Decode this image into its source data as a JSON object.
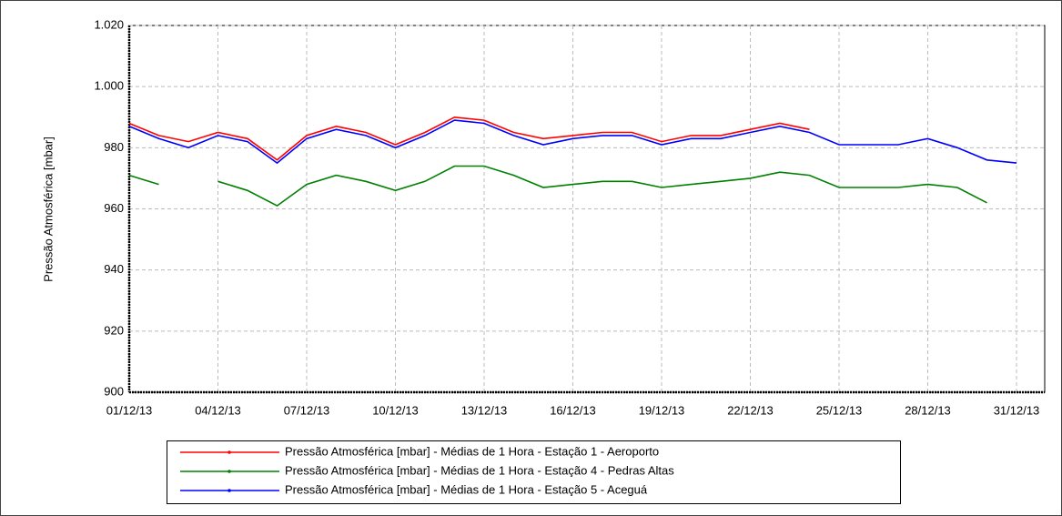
{
  "chart_data": {
    "type": "line",
    "ylabel": "Pressão Atmosférica [mbar]",
    "x": [
      "01/12/13",
      "02/12/13",
      "03/12/13",
      "04/12/13",
      "05/12/13",
      "06/12/13",
      "07/12/13",
      "08/12/13",
      "09/12/13",
      "10/12/13",
      "11/12/13",
      "12/12/13",
      "13/12/13",
      "14/12/13",
      "15/12/13",
      "16/12/13",
      "17/12/13",
      "18/12/13",
      "19/12/13",
      "20/12/13",
      "21/12/13",
      "22/12/13",
      "23/12/13",
      "24/12/13",
      "25/12/13",
      "26/12/13",
      "27/12/13",
      "28/12/13",
      "29/12/13",
      "30/12/13",
      "31/12/13"
    ],
    "series": [
      {
        "name": "Pressão Atmosférica [mbar] - Médias de 1 Hora - Estação 1 - Aeroporto",
        "color": "#ff0000",
        "values": [
          988,
          984,
          982,
          985,
          983,
          976,
          984,
          987,
          985,
          981,
          985,
          990,
          989,
          985,
          983,
          984,
          985,
          985,
          982,
          984,
          984,
          986,
          988,
          986,
          null,
          null,
          null,
          null,
          null,
          null,
          null
        ]
      },
      {
        "name": "Pressão Atmosférica [mbar] - Médias de 1 Hora - Estação 4 - Pedras Altas",
        "color": "#008000",
        "values": [
          971,
          968,
          null,
          969,
          966,
          961,
          968,
          971,
          969,
          966,
          969,
          974,
          974,
          971,
          967,
          968,
          969,
          969,
          967,
          968,
          969,
          970,
          972,
          971,
          967,
          967,
          967,
          968,
          967,
          962,
          null
        ]
      },
      {
        "name": "Pressão Atmosférica [mbar] - Médias de 1 Hora - Estação 5 - Aceguá",
        "color": "#0000ff",
        "values": [
          987,
          983,
          980,
          984,
          982,
          975,
          983,
          986,
          984,
          980,
          984,
          989,
          988,
          984,
          981,
          983,
          984,
          984,
          981,
          983,
          983,
          985,
          987,
          985,
          981,
          981,
          981,
          983,
          980,
          976,
          975
        ]
      }
    ],
    "xlim": [
      "01/12/13",
      "31/12/13"
    ],
    "xticks": [
      "01/12/13",
      "04/12/13",
      "07/12/13",
      "10/12/13",
      "13/12/13",
      "16/12/13",
      "19/12/13",
      "22/12/13",
      "25/12/13",
      "28/12/13",
      "31/12/13"
    ],
    "ylim": [
      900,
      1020
    ],
    "yticks": [
      900,
      920,
      940,
      960,
      980,
      {
        "value": 1000,
        "label": "1.000"
      },
      {
        "value": 1020,
        "label": "1.020"
      }
    ],
    "grid": true
  }
}
